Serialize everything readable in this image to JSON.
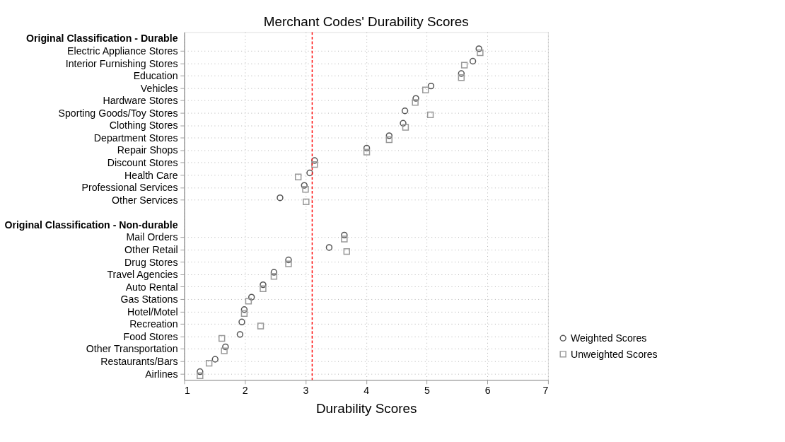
{
  "chart_data": {
    "type": "scatter",
    "title": "Merchant Codes' Durability Scores",
    "xlabel": "Durability Scores",
    "orientation": "horizontal",
    "categories": [
      "Original Classification - Durable",
      "Electric Appliance Stores",
      "Interior Furnishing Stores",
      "Education",
      "Vehicles",
      "Hardware Stores",
      "Sporting Goods/Toy Stores",
      "Clothing Stores",
      "Department Stores",
      "Repair Shops",
      "Discount Stores",
      "Health Care",
      "Professional Services",
      "Other Services",
      null,
      "Original Classification - Non-durable",
      "Mail Orders",
      "Other Retail",
      "Drug Stores",
      "Travel Agencies",
      "Auto Rental",
      "Gas Stations",
      "Hotel/Motel",
      "Recreation",
      "Food Stores",
      "Other Transportation",
      "Restaurants/Bars",
      "Airlines"
    ],
    "series": [
      {
        "name": "Weighted Scores",
        "color": "#555555",
        "marker": "circle",
        "values": [
          null,
          5.86,
          5.76,
          5.57,
          5.07,
          4.82,
          4.64,
          4.61,
          4.38,
          4.01,
          3.15,
          3.07,
          2.98,
          2.58,
          null,
          null,
          3.64,
          3.39,
          2.72,
          2.48,
          2.3,
          2.11,
          1.99,
          1.95,
          1.92,
          1.68,
          1.51,
          1.26
        ]
      },
      {
        "name": "Unweighted Scores",
        "color": "#999999",
        "marker": "square",
        "values": [
          null,
          5.88,
          5.62,
          5.57,
          4.98,
          4.81,
          5.06,
          4.65,
          4.38,
          4.01,
          3.15,
          2.88,
          3.0,
          3.01,
          null,
          null,
          3.64,
          3.68,
          2.72,
          2.48,
          2.3,
          2.06,
          1.99,
          2.26,
          1.62,
          1.66,
          1.41,
          1.26
        ]
      }
    ],
    "xlim": [
      1,
      7
    ],
    "xticks": [
      1,
      2,
      3,
      4,
      5,
      6,
      7
    ],
    "ref_lines": [
      {
        "axis": "x",
        "value": 3.11,
        "color": "#ff0000",
        "line_style": "dashed"
      }
    ],
    "grid": true,
    "legend": "bottom right"
  }
}
